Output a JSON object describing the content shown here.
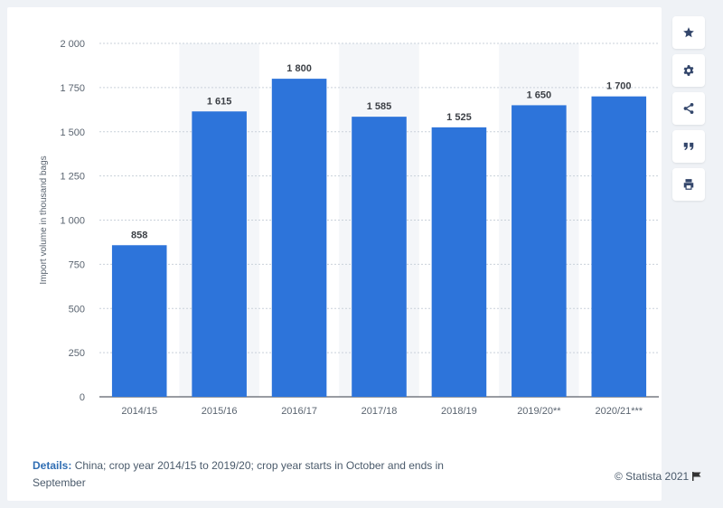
{
  "chart_data": {
    "type": "bar",
    "categories": [
      "2014/15",
      "2015/16",
      "2016/17",
      "2017/18",
      "2018/19",
      "2019/20**",
      "2020/21***"
    ],
    "values": [
      858,
      1615,
      1800,
      1585,
      1525,
      1650,
      1700
    ],
    "value_labels": [
      "858",
      "1 615",
      "1 800",
      "1 585",
      "1 525",
      "1 650",
      "1 700"
    ],
    "yticks": [
      0,
      250,
      500,
      750,
      1000,
      1250,
      1500,
      1750,
      2000
    ],
    "ytick_labels": [
      "0",
      "250",
      "500",
      "750",
      "1 000",
      "1 250",
      "1 500",
      "1 750",
      "2 000"
    ],
    "ylabel": "Import volume in thousand bags",
    "xlabel": "",
    "title": "",
    "ylim": [
      0,
      2000
    ],
    "grid": true,
    "bar_color": "#2d74da",
    "band_color": "#f4f6f9"
  },
  "footer": {
    "details_label": "Details:",
    "details_text": " China; crop year 2014/15 to 2019/20; crop year starts in October and ends in September",
    "copyright": "© Statista 2021"
  },
  "sidebar": {
    "buttons": [
      "star-icon",
      "gear-icon",
      "share-icon",
      "quote-icon",
      "print-icon"
    ]
  }
}
